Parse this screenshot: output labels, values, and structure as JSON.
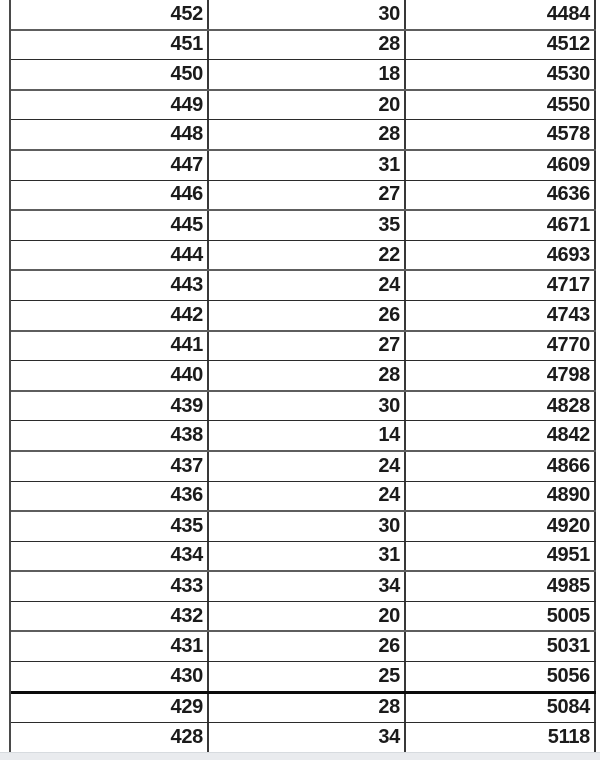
{
  "colors": {
    "background": "#ffffff",
    "text": "#1b1b1b",
    "row_border": "#5e5e5e",
    "thick_divider": "#0a0a0a",
    "vertical_border": "#383838",
    "bottom_band": "#e9ebee"
  },
  "table": {
    "thick_divider_after_value": "430",
    "rows": [
      {
        "col1": "452",
        "col2": "30",
        "col3": "4484"
      },
      {
        "col1": "451",
        "col2": "28",
        "col3": "4512"
      },
      {
        "col1": "450",
        "col2": "18",
        "col3": "4530"
      },
      {
        "col1": "449",
        "col2": "20",
        "col3": "4550"
      },
      {
        "col1": "448",
        "col2": "28",
        "col3": "4578"
      },
      {
        "col1": "447",
        "col2": "31",
        "col3": "4609"
      },
      {
        "col1": "446",
        "col2": "27",
        "col3": "4636"
      },
      {
        "col1": "445",
        "col2": "35",
        "col3": "4671"
      },
      {
        "col1": "444",
        "col2": "22",
        "col3": "4693"
      },
      {
        "col1": "443",
        "col2": "24",
        "col3": "4717"
      },
      {
        "col1": "442",
        "col2": "26",
        "col3": "4743"
      },
      {
        "col1": "441",
        "col2": "27",
        "col3": "4770"
      },
      {
        "col1": "440",
        "col2": "28",
        "col3": "4798"
      },
      {
        "col1": "439",
        "col2": "30",
        "col3": "4828"
      },
      {
        "col1": "438",
        "col2": "14",
        "col3": "4842"
      },
      {
        "col1": "437",
        "col2": "24",
        "col3": "4866"
      },
      {
        "col1": "436",
        "col2": "24",
        "col3": "4890"
      },
      {
        "col1": "435",
        "col2": "30",
        "col3": "4920"
      },
      {
        "col1": "434",
        "col2": "31",
        "col3": "4951"
      },
      {
        "col1": "433",
        "col2": "34",
        "col3": "4985"
      },
      {
        "col1": "432",
        "col2": "20",
        "col3": "5005"
      },
      {
        "col1": "431",
        "col2": "26",
        "col3": "5031"
      },
      {
        "col1": "430",
        "col2": "25",
        "col3": "5056"
      },
      {
        "col1": "429",
        "col2": "28",
        "col3": "5084"
      },
      {
        "col1": "428",
        "col2": "34",
        "col3": "5118"
      }
    ]
  }
}
